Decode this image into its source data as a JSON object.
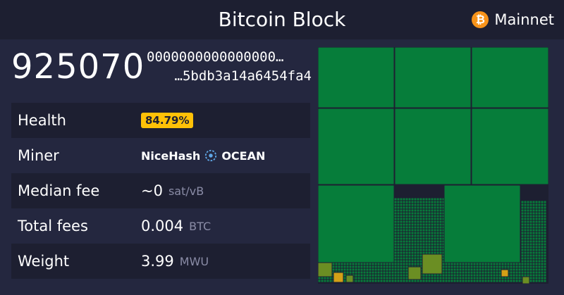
{
  "header": {
    "title": "Bitcoin Block",
    "network": "Mainnet",
    "network_icon": "bitcoin-icon"
  },
  "block": {
    "height": "925070",
    "hash_line1": "0000000000000000…",
    "hash_line2": "…5bdb3a14a6454fa4"
  },
  "details": {
    "health": {
      "label": "Health",
      "value": "84.79%"
    },
    "miner": {
      "label": "Miner",
      "pool1": "NiceHash",
      "pool2": "OCEAN",
      "pool_icon": "ocean-icon"
    },
    "median_fee": {
      "label": "Median fee",
      "value": "~0",
      "unit": "sat/vB"
    },
    "total_fees": {
      "label": "Total fees",
      "value": "0.004",
      "unit": "BTC"
    },
    "weight": {
      "label": "Weight",
      "value": "3.99",
      "unit": "MWU"
    }
  },
  "colors": {
    "background": "#24273f",
    "panel": "#1d1f31",
    "accent": "#ffc107",
    "tx_green": "#067d3a",
    "tx_green_light": "#0a8f3e",
    "tx_olive": "#6b8e23",
    "tx_orange": "#d4a017"
  }
}
